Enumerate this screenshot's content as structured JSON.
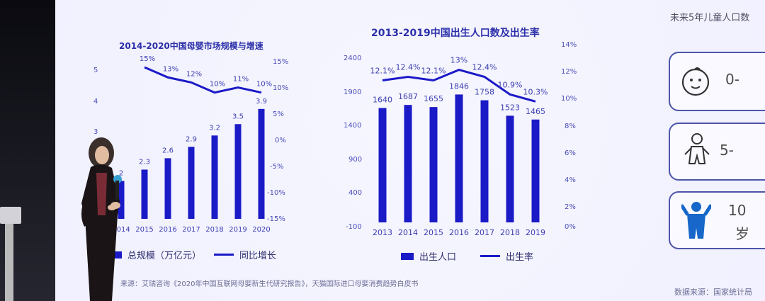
{
  "left_chart": {
    "title": "2014-2020中国母婴市场规模与增速",
    "left_ticks": [
      "5",
      "4",
      "3",
      "2"
    ],
    "right_ticks": [
      "15%",
      "10%",
      "5%",
      "0%",
      "-5%",
      "-10%",
      "-15%"
    ],
    "legend_bar": "总规模（万亿元）",
    "legend_line": "同比增长"
  },
  "middle_chart": {
    "title": "2013-2019中国出生人口数及出生率",
    "left_ticks": [
      "2400",
      "1900",
      "1400",
      "900",
      "400",
      "-100"
    ],
    "right_ticks": [
      "14%",
      "12%",
      "10%",
      "8%",
      "6%",
      "4%",
      "2%",
      "0%"
    ],
    "legend_bar": "出生人口",
    "legend_line": "出生率"
  },
  "source_left": "来源：艾瑞咨询《2020年中国互联网母婴新生代研究报告》，天猫国际进口母婴消费趋势白皮书",
  "right_panel": {
    "title": "未来5年儿童人口数",
    "cards": [
      "0-",
      "5-",
      "10",
      "岁"
    ]
  },
  "source_right": "数据来源：国家统计局",
  "chart_data": [
    {
      "type": "bar",
      "title": "2014-2020中国母婴市场规模与增速",
      "categories": [
        "2014",
        "2015",
        "2016",
        "2017",
        "2018",
        "2019",
        "2020"
      ],
      "series": [
        {
          "name": "总规模（万亿元）",
          "values": [
            2.0,
            2.3,
            2.6,
            2.9,
            3.2,
            3.5,
            3.9
          ]
        },
        {
          "name": "同比增长",
          "values": [
            null,
            15,
            13,
            12,
            10,
            11,
            10
          ]
        }
      ],
      "ylim": [
        1,
        5
      ],
      "y2lim": [
        -15,
        15
      ],
      "legend_position": "bottom"
    },
    {
      "type": "bar",
      "title": "2013-2019中国出生人口数及出生率",
      "categories": [
        "2013",
        "2014",
        "2015",
        "2016",
        "2017",
        "2018",
        "2019"
      ],
      "series": [
        {
          "name": "出生人口",
          "values": [
            1640,
            1687,
            1655,
            1846,
            1758,
            1523,
            1465
          ]
        },
        {
          "name": "出生率",
          "values": [
            12.1,
            12.4,
            12.1,
            13.0,
            12.4,
            10.9,
            10.3
          ]
        }
      ],
      "ylim": [
        -100,
        2400
      ],
      "y2lim": [
        0,
        14
      ],
      "legend_position": "bottom"
    }
  ]
}
